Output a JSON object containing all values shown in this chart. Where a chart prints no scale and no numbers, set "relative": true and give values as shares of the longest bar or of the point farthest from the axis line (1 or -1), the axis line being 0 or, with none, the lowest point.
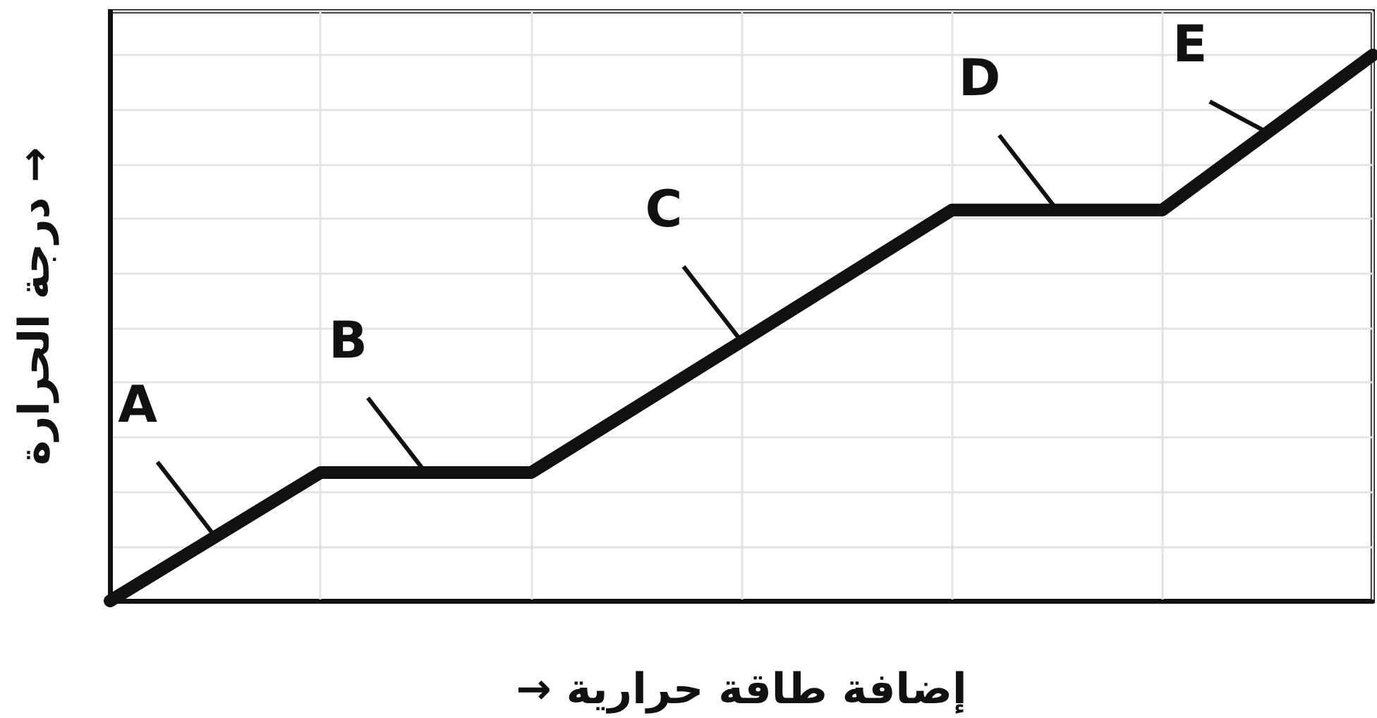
{
  "chart_data": {
    "type": "line",
    "relative": true,
    "xlabel": "→ إضافة طاقة حرارية",
    "ylabel": "درجة الحرارة →",
    "categories": [
      null,
      null,
      null,
      null,
      null,
      null,
      null
    ],
    "series": [
      {
        "color": "#111111",
        "values": [
          0,
          0.235,
          0.235,
          0.475,
          0.716,
          0.716,
          1
        ]
      }
    ],
    "annotations": [
      "A",
      "B",
      "C",
      "D",
      "E"
    ],
    "grid": true,
    "line_style": "solid"
  }
}
